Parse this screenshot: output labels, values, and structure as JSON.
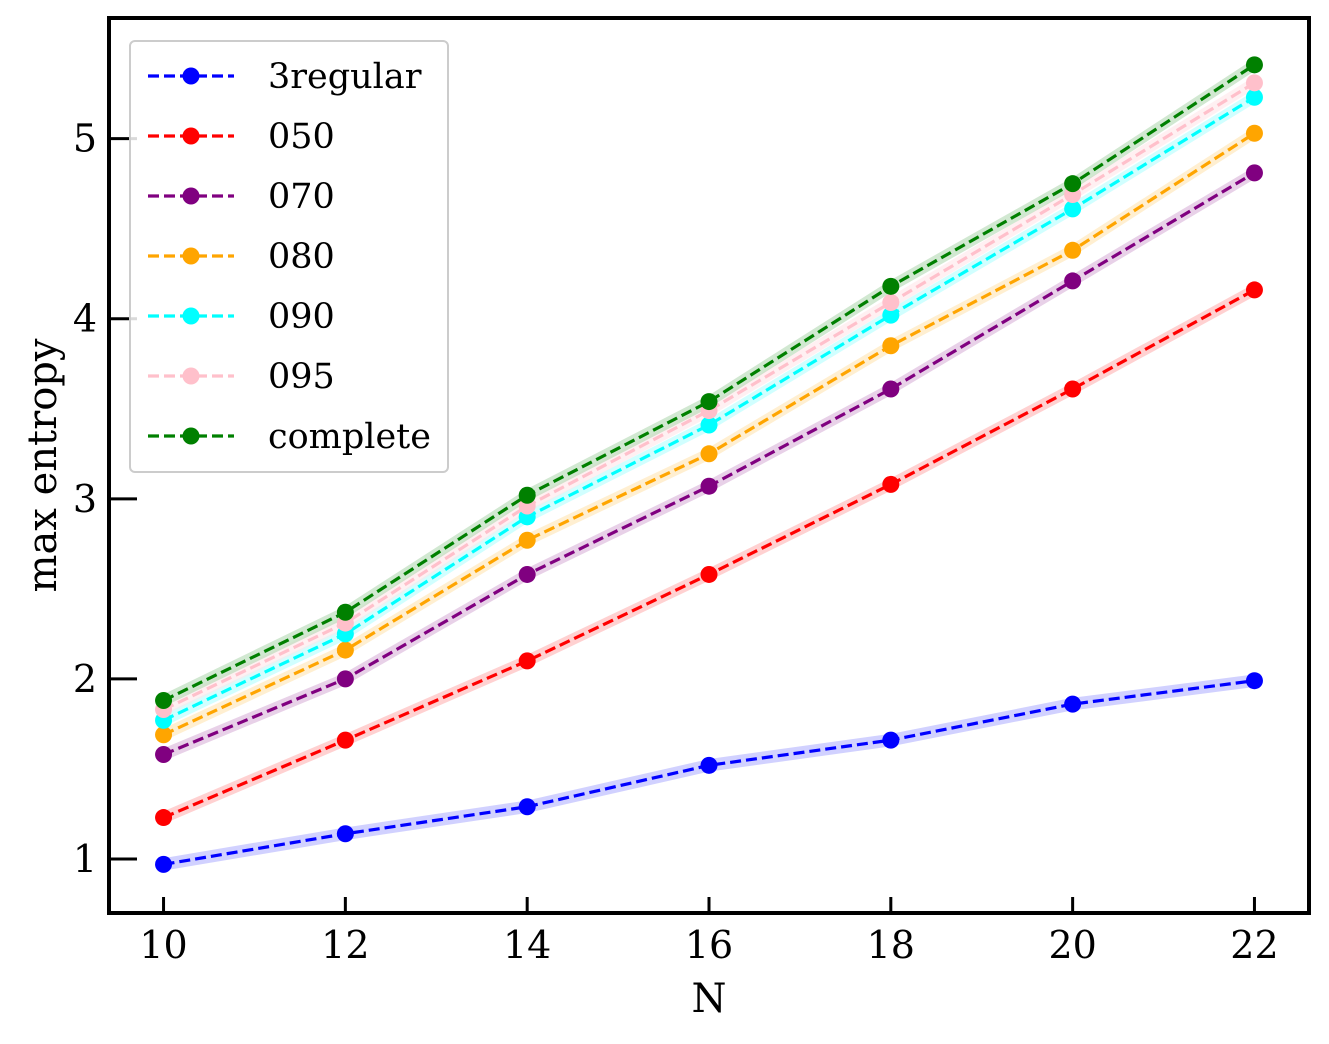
{
  "chart_data": {
    "type": "line",
    "title": "",
    "xlabel": "N",
    "ylabel": "max entropy",
    "xlim": [
      9.4,
      22.6
    ],
    "ylim": [
      0.7,
      5.67
    ],
    "xticks": [
      10,
      12,
      14,
      16,
      18,
      20,
      22
    ],
    "yticks": [
      1,
      2,
      3,
      4,
      5
    ],
    "x": [
      10,
      12,
      14,
      16,
      18,
      20,
      22
    ],
    "legend_position": "top-left",
    "series": [
      {
        "name": "3regular",
        "color": "#0000ff",
        "band": "#b3b3ff",
        "values": [
          0.97,
          1.14,
          1.29,
          1.52,
          1.66,
          1.86,
          1.99
        ]
      },
      {
        "name": "050",
        "color": "#ff0000",
        "band": "#ffb3b3",
        "values": [
          1.23,
          1.66,
          2.1,
          2.58,
          3.08,
          3.61,
          4.16
        ]
      },
      {
        "name": "070",
        "color": "#800080",
        "band": "#d9b3d9",
        "values": [
          1.58,
          2.0,
          2.58,
          3.07,
          3.61,
          4.21,
          4.81
        ]
      },
      {
        "name": "080",
        "color": "#ffa500",
        "band": "#ffe4b3",
        "values": [
          1.69,
          2.16,
          2.77,
          3.25,
          3.85,
          4.38,
          5.03
        ]
      },
      {
        "name": "090",
        "color": "#00ffff",
        "band": "#b3ffff",
        "values": [
          1.77,
          2.25,
          2.9,
          3.41,
          4.02,
          4.61,
          5.23
        ]
      },
      {
        "name": "095",
        "color": "#ffc0cb",
        "band": "#ffe6ea",
        "values": [
          1.83,
          2.31,
          2.96,
          3.49,
          4.09,
          4.69,
          5.31
        ]
      },
      {
        "name": "complete",
        "color": "#008000",
        "band": "#b3d9b3",
        "values": [
          1.88,
          2.37,
          3.02,
          3.54,
          4.18,
          4.75,
          5.41
        ]
      }
    ]
  }
}
